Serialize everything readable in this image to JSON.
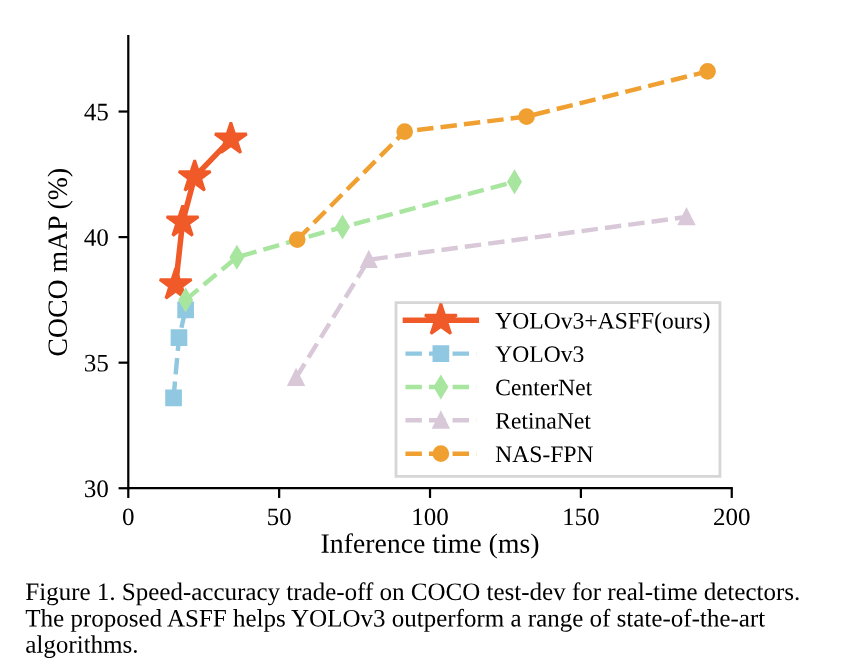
{
  "chart_data": {
    "type": "line",
    "xlabel": "Inference time (ms)",
    "ylabel": "COCO mAP (%)",
    "xlim": [
      0,
      200
    ],
    "xticks": [
      0,
      50,
      100,
      150,
      200
    ],
    "ylim": [
      30,
      48
    ],
    "yticks": [
      30,
      35,
      40,
      45
    ],
    "grid": false,
    "legend": "bottom right",
    "series": [
      {
        "name": "YOLOv3+ASFF(ours)",
        "color": "#f05a28",
        "marker": "star",
        "line_style": "solid",
        "x": [
          15.7,
          18.0,
          22.0,
          34.0
        ],
        "values": [
          38.1,
          40.6,
          42.4,
          43.9
        ]
      },
      {
        "name": "YOLOv3",
        "color": "#8fc8e0",
        "marker": "square",
        "line_style": "dashed",
        "x": [
          15.0,
          16.8,
          19.0
        ],
        "values": [
          33.6,
          36.0,
          37.1
        ]
      },
      {
        "name": "CenterNet",
        "color": "#a8e6a0",
        "marker": "diamond",
        "line_style": "dashed",
        "x": [
          19,
          36,
          71,
          128
        ],
        "values": [
          37.5,
          39.2,
          40.4,
          42.2
        ]
      },
      {
        "name": "RetinaNet",
        "color": "#d8c8d8",
        "marker": "triangle",
        "line_style": "dashed",
        "x": [
          55.6,
          79.7,
          185
        ],
        "values": [
          34.4,
          39.1,
          40.8
        ]
      },
      {
        "name": "NAS-FPN",
        "color": "#f0a030",
        "marker": "circle",
        "line_style": "dashed",
        "x": [
          56,
          91.6,
          132,
          192
        ],
        "values": [
          39.9,
          44.2,
          44.8,
          46.6
        ]
      }
    ],
    "annotations": [
      "Figure 1. Speed-accuracy trade-off on COCO test-dev for real-time detectors. The proposed ASFF helps YOLOv3 outperform a range of state-of-the-art algorithms."
    ]
  }
}
